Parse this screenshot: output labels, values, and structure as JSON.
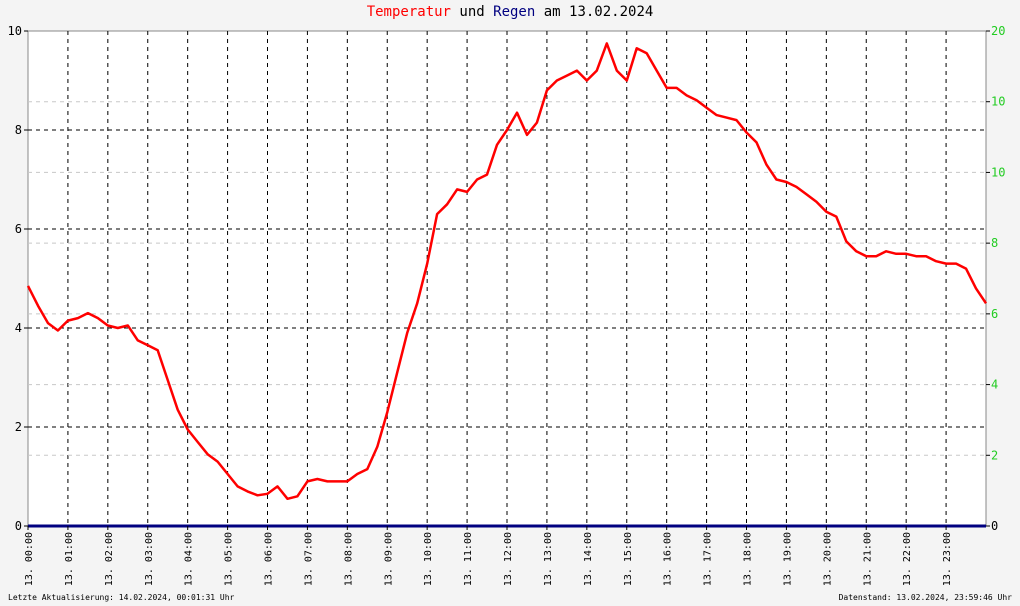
{
  "title": {
    "part1": "Temperatur",
    "part2": " und ",
    "part3": "Regen",
    "part4": " am 13.02.2024"
  },
  "footer": {
    "left": "Letzte Aktualisierung: 14.02.2024, 00:01:31 Uhr",
    "right": "Datenstand: 13.02.2024, 23:59:46 Uhr"
  },
  "colors": {
    "temperature": "#ff0000",
    "rain": "#000080",
    "right_axis": "#22cc22",
    "background": "#ffffff",
    "grid": "#000000"
  },
  "chart_data": {
    "type": "line",
    "xlabel": "",
    "ylabel": "",
    "grid": true,
    "x_range": [
      0,
      24
    ],
    "x_ticks": [
      "13. 00:00",
      "13. 01:00",
      "13. 02:00",
      "13. 03:00",
      "13. 04:00",
      "13. 05:00",
      "13. 06:00",
      "13. 07:00",
      "13. 08:00",
      "13. 09:00",
      "13. 10:00",
      "13. 11:00",
      "13. 12:00",
      "13. 13:00",
      "13. 14:00",
      "13. 15:00",
      "13. 16:00",
      "13. 17:00",
      "13. 18:00",
      "13. 19:00",
      "13. 20:00",
      "13. 21:00",
      "13. 22:00",
      "13. 23:00"
    ],
    "y_left": {
      "range": [
        0,
        10
      ],
      "ticks": [
        "0",
        "2",
        "4",
        "6",
        "8",
        "10"
      ]
    },
    "y_right": {
      "range": [
        0,
        20
      ],
      "ticks": [
        "0",
        "2",
        "4",
        "6",
        "8",
        "10",
        "10",
        "20"
      ]
    },
    "series": [
      {
        "name": "Temperatur",
        "axis": "left",
        "x": [
          0,
          0.25,
          0.5,
          0.75,
          1.0,
          1.25,
          1.5,
          1.75,
          2.0,
          2.25,
          2.5,
          2.75,
          3.0,
          3.25,
          3.5,
          3.75,
          4.0,
          4.25,
          4.5,
          4.75,
          5.0,
          5.25,
          5.5,
          5.75,
          6.0,
          6.25,
          6.5,
          6.75,
          7.0,
          7.25,
          7.5,
          7.75,
          8.0,
          8.25,
          8.5,
          8.75,
          9.0,
          9.25,
          9.5,
          9.75,
          10.0,
          10.25,
          10.5,
          10.75,
          11.0,
          11.25,
          11.5,
          11.75,
          12.0,
          12.25,
          12.5,
          12.75,
          13.0,
          13.25,
          13.5,
          13.75,
          14.0,
          14.25,
          14.5,
          14.75,
          15.0,
          15.25,
          15.5,
          15.75,
          16.0,
          16.25,
          16.5,
          16.75,
          17.0,
          17.25,
          17.5,
          17.75,
          18.0,
          18.25,
          18.5,
          18.75,
          19.0,
          19.25,
          19.5,
          19.75,
          20.0,
          20.25,
          20.5,
          20.75,
          21.0,
          21.25,
          21.5,
          21.75,
          22.0,
          22.25,
          22.5,
          22.75,
          23.0,
          23.25,
          23.5,
          23.75,
          24.0
        ],
        "values": [
          4.85,
          4.45,
          4.1,
          3.95,
          4.15,
          4.2,
          4.3,
          4.2,
          4.05,
          4.0,
          4.05,
          3.75,
          3.65,
          3.55,
          2.95,
          2.35,
          1.95,
          1.7,
          1.45,
          1.3,
          1.05,
          0.8,
          0.7,
          0.62,
          0.65,
          0.8,
          0.55,
          0.6,
          0.9,
          0.95,
          0.9,
          0.9,
          0.9,
          1.05,
          1.15,
          1.6,
          2.3,
          3.1,
          3.9,
          4.5,
          5.3,
          6.3,
          6.5,
          6.8,
          6.75,
          7.0,
          7.1,
          7.7,
          8.0,
          8.35,
          7.9,
          8.15,
          8.8,
          9.0,
          9.1,
          9.2,
          9.0,
          9.2,
          9.75,
          9.2,
          9.0,
          9.65,
          9.55,
          9.2,
          8.85,
          8.85,
          8.7,
          8.6,
          8.45,
          8.3,
          8.25,
          8.2,
          7.95,
          7.75,
          7.3,
          7.0,
          6.95,
          6.85,
          6.7,
          6.55,
          6.35,
          6.25,
          5.75,
          5.55,
          5.45,
          5.45,
          5.55,
          5.5,
          5.5,
          5.45,
          5.45,
          5.35,
          5.3,
          5.3,
          5.2,
          4.8,
          4.5
        ]
      },
      {
        "name": "Regen",
        "axis": "right",
        "x": [
          0,
          24
        ],
        "values": [
          0,
          0
        ]
      }
    ]
  }
}
